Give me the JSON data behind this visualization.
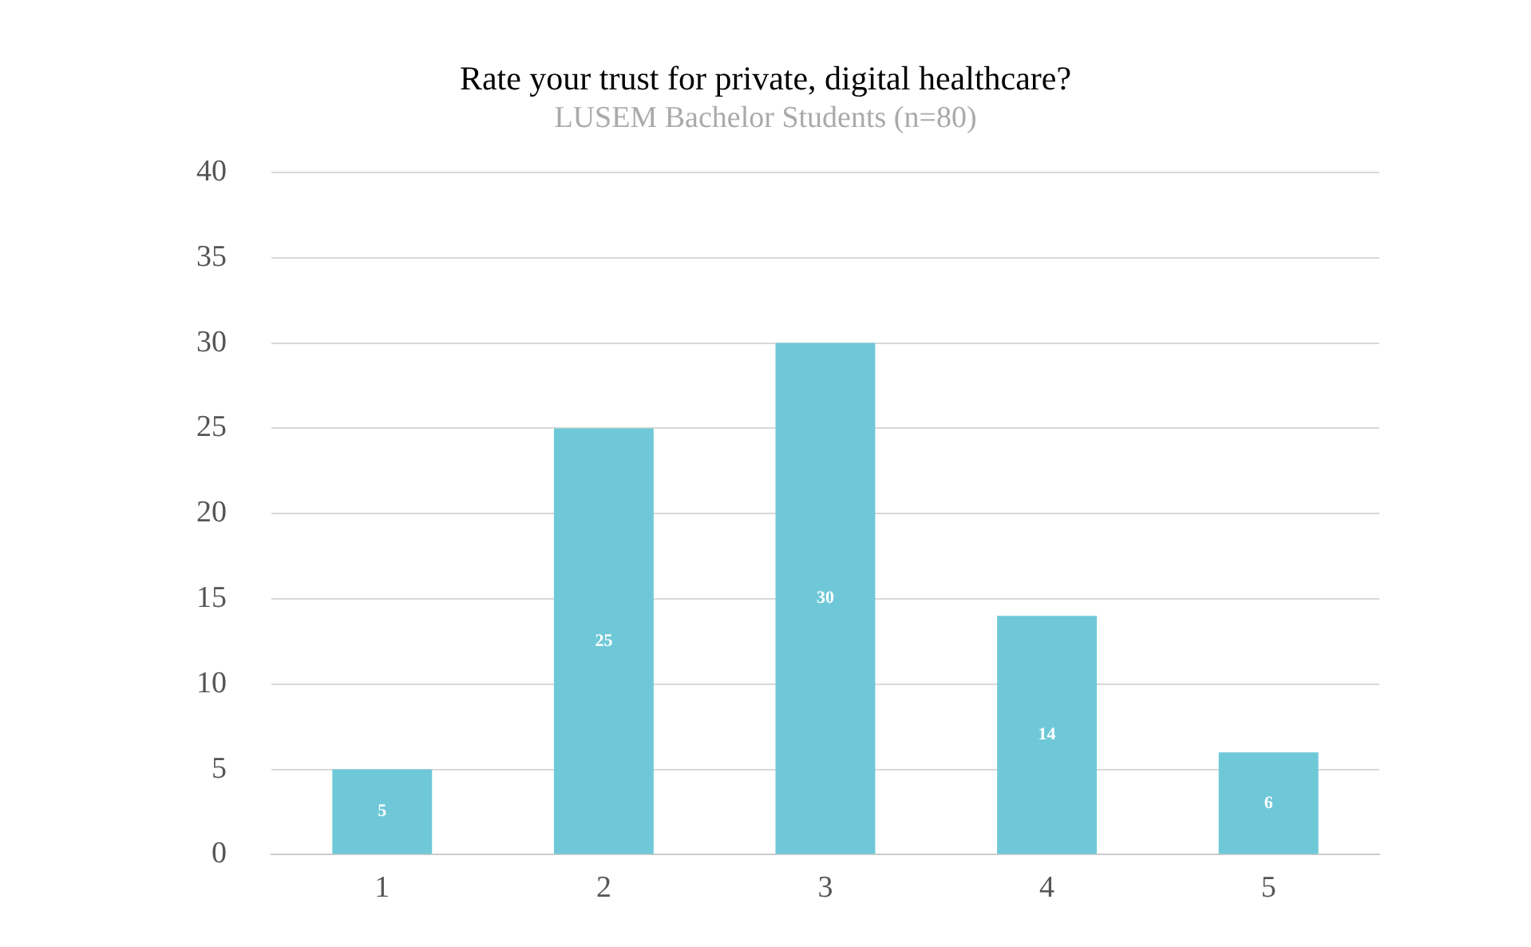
{
  "chart_data": {
    "type": "bar",
    "title": "Rate your trust for private, digital healthcare?",
    "subtitle": "LUSEM Bachelor Students (n=80)",
    "categories": [
      "1",
      "2",
      "3",
      "4",
      "5"
    ],
    "values": [
      5,
      25,
      30,
      14,
      6
    ],
    "color": "#6fc8d8",
    "ylim": [
      0,
      40
    ],
    "yticks": [
      0,
      5,
      10,
      15,
      20,
      25,
      30,
      35,
      40
    ],
    "grid": "y",
    "data_labels": true,
    "legend": false
  }
}
